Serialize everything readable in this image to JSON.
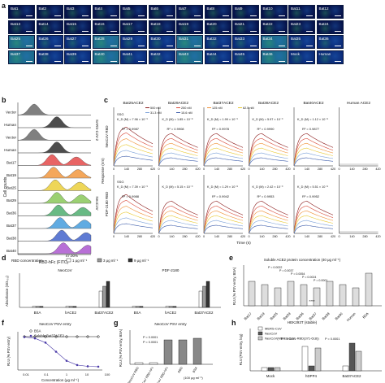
{
  "panel_letters": {
    "a": "a",
    "b": "b",
    "c": "c",
    "d": "d",
    "e": "e",
    "f": "f",
    "g": "g",
    "h": "h"
  },
  "panel_a": {
    "tiles": [
      "Bat1",
      "Bat2",
      "Bat3",
      "Bat4",
      "Bat5",
      "Bat6",
      "Bat7",
      "Bat8",
      "Bat9",
      "Bat10",
      "Bat11",
      "Bat12",
      "Bat13",
      "Bat14",
      "Bat15",
      "Bat16",
      "Bat17",
      "Bat18",
      "Bat19",
      "Bat20",
      "Bat21",
      "Bat22",
      "Bat23",
      "Bat24",
      "Bat25",
      "Bat26",
      "Bat27",
      "Bat28",
      "Bat29",
      "Bat30",
      "Bat31",
      "Bat32",
      "Bat33",
      "Bat34",
      "Bat35",
      "Bat36",
      "Bat37",
      "Bat38",
      "Bat39",
      "Bat40",
      "Bat41",
      "Bat42",
      "Bat43",
      "Bat44",
      "Bat45",
      "Bat46",
      "Mock",
      "Human"
    ],
    "side_labels": [
      "SARS-CoV-2",
      "NeoCoV"
    ],
    "colors": {
      "tile_dark": "#06124a",
      "tile_mid": "#0a2a78",
      "tile_bright": "#1c6a8a",
      "green_signal": "#3fbf6a"
    }
  },
  "panel_b": {
    "rows": [
      "Vector",
      "Human",
      "Vector",
      "Human",
      "Bat17",
      "Bat19",
      "Bat25",
      "Bat29",
      "Bat36",
      "Bat37",
      "Bat38",
      "Bat40"
    ],
    "ylabel": "Cell counts",
    "xlabel": "RBD-hFc (FITC)",
    "group_labels": [
      "SARS-CoV-2",
      "NeoCoV"
    ],
    "percent": "47.00%",
    "colors": [
      "#555555",
      "#111111",
      "#555555",
      "#111111",
      "#e03030",
      "#f08a24",
      "#e8c820",
      "#7ac043",
      "#35a35b",
      "#2b8fd8",
      "#2a4fc4",
      "#a040c8"
    ]
  },
  "panel_c": {
    "columns": [
      "Bat25ACE2",
      "Bat29ACE2",
      "Bat37ACE2",
      "Bat38ACE2",
      "Bat40ACE2",
      "Human ACE2"
    ],
    "row_labels": [
      "NeoCoV RBD",
      "PDF-2180 RBD"
    ],
    "ylabel": "Response (nm)",
    "xlabel": "Time (s)",
    "x_ticks": [
      "0",
      "140",
      "280",
      "420"
    ],
    "legend": [
      "500 nM",
      "250 nM",
      "125 nM",
      "62.5 nM",
      "31.3 nM",
      "15.6 nM"
    ],
    "legend_colors": [
      "#8b1a1a",
      "#d94a3a",
      "#f0923a",
      "#e8c830",
      "#7aa0d8",
      "#3a5aa8"
    ],
    "row1_stats": [
      {
        "ssg": "SSG",
        "kd": "K_D (M) = 7.96 × 10⁻⁹",
        "r2": "R² = 0.9987"
      },
      {
        "ssg": "",
        "kd": "K_D (M) = 1.85 × 10⁻⁸",
        "r2": "R² = 0.9908"
      },
      {
        "ssg": "",
        "kd": "K_D (M) = 1.99 × 10⁻⁹",
        "r2": "R² = 0.9978"
      },
      {
        "ssg": "",
        "kd": "K_D (M) = 5.97 × 10⁻⁹",
        "r2": "R² = 0.9990"
      },
      {
        "ssg": "",
        "kd": "K_D (M) = 1.12 × 10⁻⁸",
        "r2": "R² = 0.9877"
      },
      {
        "ssg": "",
        "kd": "",
        "r2": ""
      }
    ],
    "row2_stats": [
      {
        "ssg": "SSG",
        "kd": "K_D (M) = 7.39 × 10⁻⁹",
        "r2": "R² = 0.9988"
      },
      {
        "ssg": "",
        "kd": "K_D (M) = 5.15 × 10⁻⁹",
        "r2": ""
      },
      {
        "ssg": "",
        "kd": "K_D (M) = 1.29 × 10⁻⁸",
        "r2": "R² = 0.9942"
      },
      {
        "ssg": "",
        "kd": "K_D (M) = 2.42 × 10⁻⁹",
        "r2": "R² = 0.9953"
      },
      {
        "ssg": "",
        "kd": "K_D (M) = 5.51 × 10⁻⁸",
        "r2": "R² = 0.9952"
      },
      {
        "ssg": "",
        "kd": "",
        "r2": ""
      }
    ]
  },
  "panel_d": {
    "legend_title": "RBD concentration",
    "legend": [
      "1 μg ml⁻¹",
      "3 μg ml⁻¹",
      "9 μg ml⁻¹"
    ],
    "legend_colors": [
      "#ffffff",
      "#9a9a9a",
      "#333333"
    ],
    "group_titles": [
      "NeoCoV",
      "PDF-2180"
    ],
    "ylabel": "Absorbance (OD₄₅₀)",
    "categories": [
      "BSA",
      "hACE2",
      "Bat37ACE2",
      "BSA",
      "hACE2",
      "Bat37ACE2"
    ],
    "ylim": [
      0,
      4
    ]
  },
  "panel_e": {
    "title": "Soluble ACE2 protein concentration (40 μg ml⁻¹)",
    "ylabel": "RLU (% PSV entry, BSA)",
    "categories": [
      "Bat17",
      "Bat19",
      "Bat25",
      "Bat29",
      "Bat36",
      "Bat37",
      "Bat38",
      "Bat40",
      "Human",
      "BSA"
    ],
    "pvals": [
      "P = 0.0022",
      "P = 0.0037",
      "P = 0.0054",
      "P = 0.0024",
      "P = 0.0001"
    ],
    "stars": "****"
  },
  "panel_f": {
    "title": "NeoCoV PSV entry",
    "legend": [
      "BSA",
      "Soluble Bat37ACE2"
    ],
    "xlabel": "Concentration (μg ml⁻¹)",
    "ylabel": "RLU (% PSV entry)",
    "x_ticks": [
      "0.01",
      "0.1",
      "1",
      "10",
      "100"
    ]
  },
  "panel_g": {
    "title": "NeoCoV PSV entry",
    "pvals": [
      "P = 0.0001",
      "P = 0.0001"
    ],
    "ylabel": "RLU (% PSV entry, BSA)",
    "categories": [
      "NeoCoV RBD",
      "NeoCoV RBD-hFc",
      "MERS-CoV RBD-hFc",
      "RBD",
      "BSA"
    ],
    "note": "(100 μg ml⁻¹)"
  },
  "panel_h": {
    "title": "HEK293T (stable)",
    "legend": [
      "MERS-CoV",
      "NeoCoV",
      "NeoCoV(MERS-CoV -RBD(371-618))"
    ],
    "legend_colors": [
      "#ffffff",
      "#555555",
      "#cccccc"
    ],
    "pvals": [
      "P = 0.0001",
      "P = 0.0001"
    ],
    "ylabel": "RLU (PSV entry, log)",
    "categories": [
      "Mock",
      "hDPP4",
      "Bat37ACE2"
    ]
  }
}
